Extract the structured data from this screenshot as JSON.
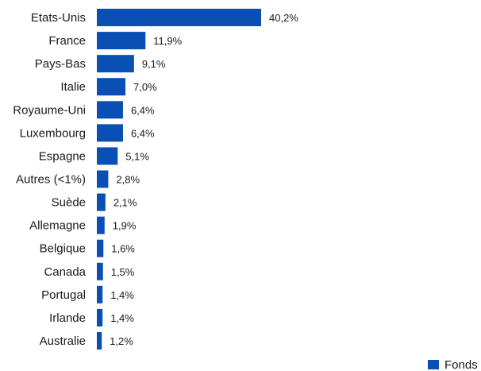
{
  "chart_data": {
    "type": "bar",
    "orientation": "horizontal",
    "categories": [
      "Etats-Unis",
      "France",
      "Pays-Bas",
      "Italie",
      "Royaume-Uni",
      "Luxembourg",
      "Espagne",
      "Autres (<1%)",
      "Suède",
      "Allemagne",
      "Belgique",
      "Canada",
      "Portugal",
      "Irlande",
      "Australie"
    ],
    "series": [
      {
        "name": "Fonds",
        "values": [
          40.2,
          11.9,
          9.1,
          7.0,
          6.4,
          6.4,
          5.1,
          2.8,
          2.1,
          1.9,
          1.6,
          1.5,
          1.4,
          1.4,
          1.2
        ],
        "labels": [
          "40,2%",
          "11,9%",
          "9,1%",
          "7,0%",
          "6,4%",
          "6,4%",
          "5,1%",
          "2,8%",
          "2,1%",
          "1,9%",
          "1,6%",
          "1,5%",
          "1,4%",
          "1,4%",
          "1,2%"
        ]
      }
    ],
    "xlim": [
      0,
      40.2
    ],
    "grid": false,
    "legend_position": "bottom-right",
    "colors": {
      "bar": "#0a4fb3"
    }
  }
}
